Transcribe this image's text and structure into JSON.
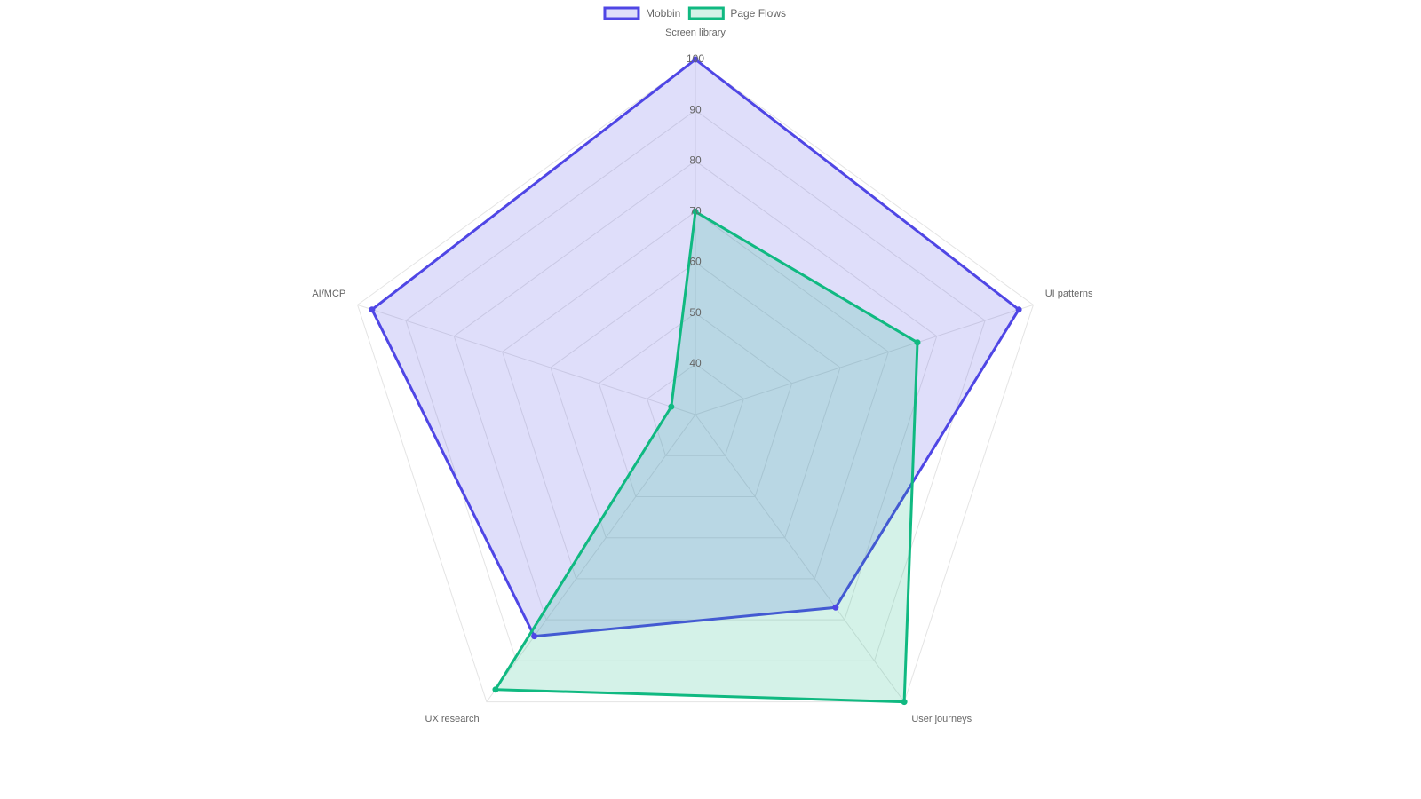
{
  "chart_data": {
    "type": "radar",
    "categories": [
      "Screen library",
      "UI patterns",
      "User journeys",
      "UX research",
      "AI/MCP"
    ],
    "series": [
      {
        "name": "Mobbin",
        "color": "#4f46e5",
        "values": [
          100,
          97,
          77,
          84,
          97
        ]
      },
      {
        "name": "Page Flows",
        "color": "#10b981",
        "values": [
          70,
          76,
          100,
          97,
          35
        ]
      }
    ],
    "rlim": [
      30,
      100
    ],
    "rticks": [
      40,
      50,
      60,
      70,
      80,
      90,
      100
    ],
    "grid": true,
    "legend": "top"
  }
}
